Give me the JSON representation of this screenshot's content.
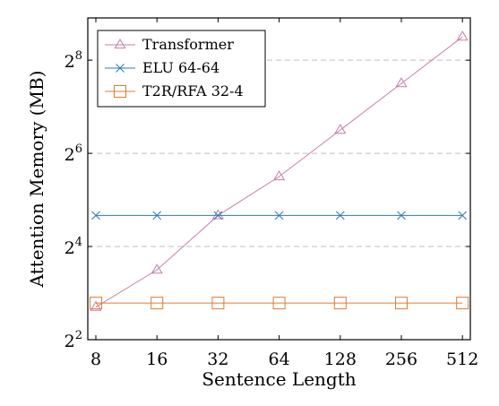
{
  "chart_data": {
    "type": "line",
    "title": "",
    "xlabel": "Sentence Length",
    "ylabel": "Attention Memory (MB)",
    "x_scale": "log2",
    "y_scale": "log2",
    "x_ticks": [
      8,
      16,
      32,
      64,
      128,
      256,
      512
    ],
    "x_tick_labels": [
      "8",
      "16",
      "32",
      "64",
      "128",
      "256",
      "512"
    ],
    "y_ticks": [
      4,
      16,
      64,
      256
    ],
    "y_tick_labels": [
      {
        "base": "2",
        "exp": "2"
      },
      {
        "base": "2",
        "exp": "4"
      },
      {
        "base": "2",
        "exp": "6"
      },
      {
        "base": "2",
        "exp": "8"
      }
    ],
    "ylim": [
      4,
      480
    ],
    "xlim": [
      7.3,
      560
    ],
    "grid": "horizontal dashed",
    "legend_position": "top-left",
    "x": [
      8,
      16,
      32,
      64,
      128,
      256,
      512
    ],
    "series": [
      {
        "name": "Transformer",
        "color": "#c97bab",
        "marker": "triangle",
        "values": [
          6.5,
          11.3,
          25.4,
          45.3,
          90.5,
          181,
          362
        ]
      },
      {
        "name": "ELU 64-64",
        "color": "#2c7ab8",
        "marker": "cross",
        "values": [
          25.4,
          25.4,
          25.4,
          25.4,
          25.4,
          25.4,
          25.4
        ]
      },
      {
        "name": "T2R/RFA 32-4",
        "color": "#e07b2f",
        "marker": "square",
        "values": [
          6.9,
          6.9,
          6.9,
          6.9,
          6.9,
          6.9,
          6.9
        ]
      }
    ]
  }
}
